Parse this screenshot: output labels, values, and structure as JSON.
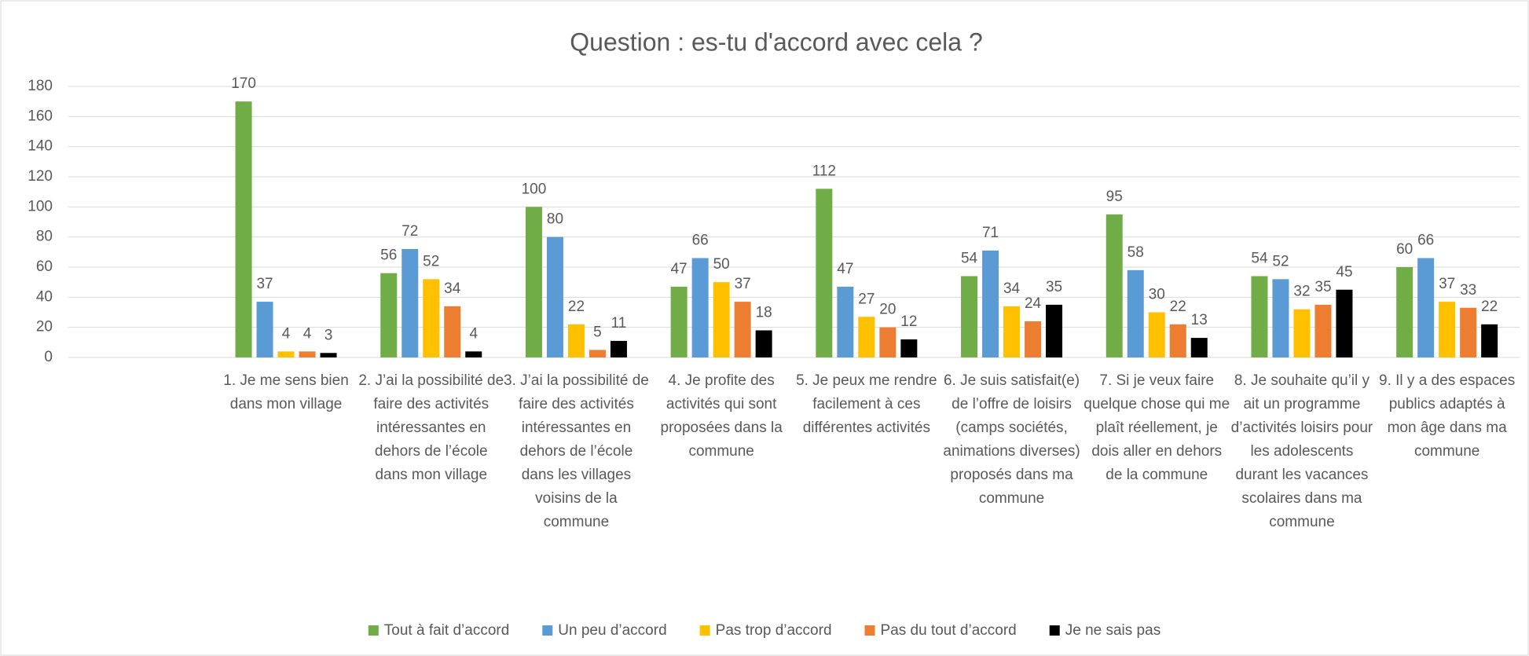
{
  "chart_data": {
    "type": "bar",
    "title": "Question : es-tu d'accord avec cela ?",
    "categories": [
      null,
      "1. Je me sens bien dans mon village",
      "2. J’ai la possibilité de faire des activités intéressantes en dehors de l’école dans mon village",
      "3. J’ai la possibilité de faire des activités intéressantes en dehors de l’école dans les villages voisins de la commune",
      "4. Je profite des activités qui sont proposées dans la commune",
      "5. Je peux me rendre facilement à ces différentes activités",
      "6. Je suis satisfait(e) de l’offre de loisirs (camps sociétés, animations diverses) proposés dans ma commune",
      "7. Si je veux faire quelque chose qui me plaît réellement, je dois aller en dehors de la commune",
      "8. Je souhaite qu’il y ait un programme d’activités loisirs pour les adolescents durant les vacances scolaires dans ma commune",
      "9. Il y a des espaces publics adaptés à mon âge dans ma commune"
    ],
    "series": [
      {
        "name": "Tout à fait d’accord",
        "color": "#70ad47",
        "values": [
          null,
          170,
          56,
          100,
          47,
          112,
          54,
          95,
          54,
          60
        ]
      },
      {
        "name": "Un peu d’accord",
        "color": "#5b9bd5",
        "values": [
          null,
          37,
          72,
          80,
          66,
          47,
          71,
          58,
          52,
          66
        ]
      },
      {
        "name": "Pas trop d’accord",
        "color": "#ffc000",
        "values": [
          null,
          4,
          52,
          22,
          50,
          27,
          34,
          30,
          32,
          37
        ]
      },
      {
        "name": "Pas du tout d’accord",
        "color": "#ed7d31",
        "values": [
          null,
          4,
          34,
          5,
          37,
          20,
          24,
          22,
          35,
          33
        ]
      },
      {
        "name": "Je ne sais pas",
        "color": "#000000",
        "values": [
          null,
          3,
          4,
          11,
          18,
          12,
          35,
          13,
          45,
          22
        ]
      }
    ],
    "ylim": [
      0,
      180
    ],
    "yticks": [
      0,
      20,
      40,
      60,
      80,
      100,
      120,
      140,
      160,
      180
    ],
    "grid": true,
    "legend": "bottom"
  }
}
